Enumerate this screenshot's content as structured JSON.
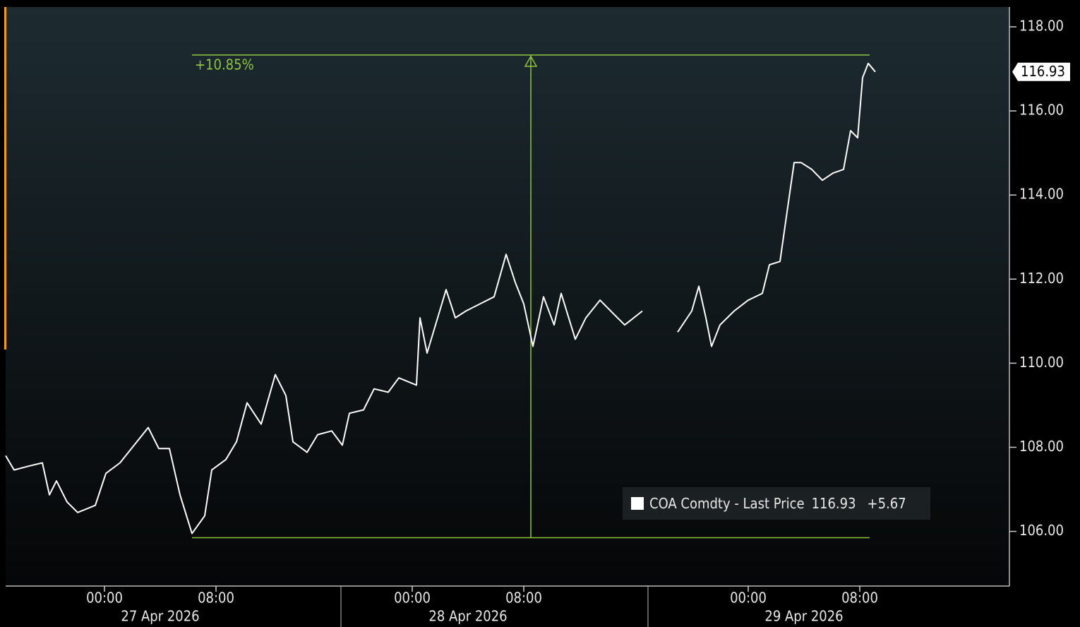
{
  "chart_data": {
    "type": "line",
    "series": [
      {
        "name": "COA Comdty - Last Price",
        "color": "#ffffff",
        "x": [
          0,
          0.6,
          1.6,
          2.6,
          3.1,
          3.6,
          4.35,
          5.1,
          6.35,
          7.1,
          8.1,
          9.1,
          10.1,
          10.85,
          11.6,
          12.35,
          13.2,
          14.1,
          14.6,
          15.6,
          16.35,
          17.1,
          18.1,
          19.1,
          19.85,
          20.35,
          21.35,
          22.1,
          23.1,
          23.85,
          24.35,
          25.35,
          26.1,
          27.1,
          27.85,
          29.1,
          29.35,
          29.85,
          30.6,
          31.2,
          31.85,
          32.6,
          33.6,
          34.6,
          35.45,
          36.1,
          36.7,
          37.35,
          38.1,
          38.85,
          39.35,
          40.35,
          41.1,
          42.1,
          43.1,
          43.85,
          45.1,
          46.35,
          47.6,
          48.6,
          49.1,
          49.6,
          50,
          50.6,
          51.6,
          52.6,
          53.6,
          54.1,
          54.85,
          55.35,
          55.85,
          56.35,
          57.1,
          57.85,
          58.6,
          59.35,
          59.85,
          60.35,
          60.7,
          61.1,
          61.6
        ],
        "values": [
          107.8,
          107.46,
          107.55,
          107.63,
          106.87,
          107.2,
          106.7,
          106.45,
          106.62,
          107.38,
          107.63,
          108.05,
          108.47,
          107.97,
          107.97,
          106.87,
          105.95,
          106.37,
          107.46,
          107.71,
          108.13,
          109.06,
          108.55,
          109.73,
          109.23,
          108.13,
          107.88,
          108.3,
          108.39,
          108.05,
          108.81,
          108.89,
          109.39,
          109.31,
          109.65,
          109.48,
          111.08,
          110.24,
          111.08,
          111.75,
          111.08,
          111.24,
          111.41,
          111.58,
          112.59,
          111.92,
          111.41,
          110.4,
          111.58,
          110.91,
          111.66,
          110.57,
          111.08,
          111.5,
          111.16,
          110.91,
          111.24,
          null,
          110.74,
          111.24,
          111.83,
          111.08,
          110.4,
          110.91,
          111.24,
          111.5,
          111.66,
          112.34,
          112.42,
          113.6,
          114.77,
          114.77,
          114.61,
          114.35,
          114.52,
          114.61,
          115.53,
          115.36,
          116.79,
          117.13,
          116.93
        ]
      }
    ],
    "last_price": 116.93,
    "change": 5.67,
    "change_label": "+5.67",
    "annotation": {
      "label": "+10.85%",
      "high": 117.33,
      "low": 105.85,
      "x_start": 13.2,
      "x_end": 61.2,
      "x_mid": 37.2,
      "color": "#8fc53a"
    },
    "xlim": [
      0,
      71.1
    ],
    "xticks": [
      {
        "value": 7,
        "label": "00:00"
      },
      {
        "value": 14.9,
        "label": "08:00"
      },
      {
        "value": 28.8,
        "label": "00:00"
      },
      {
        "value": 36.7,
        "label": "08:00"
      },
      {
        "value": 52.6,
        "label": "00:00"
      },
      {
        "value": 60.5,
        "label": "08:00"
      }
    ],
    "date_labels": [
      "27 Apr 2026",
      "28 Apr 2026",
      "29 Apr 2026"
    ],
    "ylim": [
      104.7,
      118.47
    ],
    "yticks": [
      {
        "value": 106,
        "label": "106.00"
      },
      {
        "value": 108,
        "label": "108.00"
      },
      {
        "value": 110,
        "label": "110.00"
      },
      {
        "value": 112,
        "label": "112.00"
      },
      {
        "value": 114,
        "label": "114.00"
      },
      {
        "value": 116,
        "label": "116.00"
      },
      {
        "value": 118,
        "label": "118.00"
      }
    ]
  }
}
